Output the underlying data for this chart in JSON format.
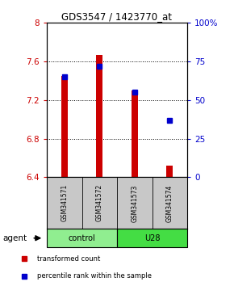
{
  "title": "GDS3547 / 1423770_at",
  "samples": [
    "GSM341571",
    "GSM341572",
    "GSM341573",
    "GSM341574"
  ],
  "bar_bottom": 6.4,
  "bar_tops": [
    7.45,
    7.67,
    7.3,
    6.52
  ],
  "percentile_values": [
    65,
    72,
    55,
    37
  ],
  "ylim_left": [
    6.4,
    8.0
  ],
  "ylim_right": [
    0,
    100
  ],
  "yticks_left": [
    6.4,
    6.8,
    7.2,
    7.6,
    8.0
  ],
  "yticks_right": [
    0,
    25,
    50,
    75,
    100
  ],
  "ytick_labels_left": [
    "6.4",
    "6.8",
    "7.2",
    "7.6",
    "8"
  ],
  "ytick_labels_right": [
    "0",
    "25",
    "50",
    "75",
    "100%"
  ],
  "bar_color": "#CC0000",
  "dot_color": "#0000CC",
  "bar_width": 0.18,
  "legend_red": "transformed count",
  "legend_blue": "percentile rank within the sample",
  "agent_label": "agent",
  "color_left": "#CC0000",
  "color_right": "#0000CC",
  "background_plot": "#FFFFFF",
  "background_sample": "#C8C8C8",
  "control_color": "#90EE90",
  "u28_color": "#44DD44"
}
